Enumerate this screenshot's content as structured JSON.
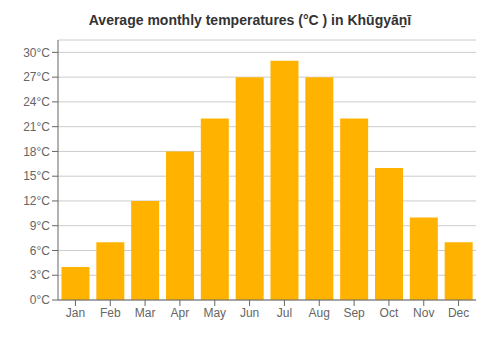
{
  "chart_data": {
    "type": "bar",
    "title": "Average monthly temperatures (°C ) in Khūgyāṉī",
    "categories": [
      "Jan",
      "Feb",
      "Mar",
      "Apr",
      "May",
      "Jun",
      "Jul",
      "Aug",
      "Sep",
      "Oct",
      "Nov",
      "Dec"
    ],
    "values": [
      4,
      7,
      12,
      18,
      22,
      27,
      29,
      27,
      22,
      16,
      10,
      7
    ],
    "color": "#FFB300",
    "ylim": [
      0,
      31.5
    ],
    "yticks": [
      {
        "value": 0,
        "label": "0°C"
      },
      {
        "value": 3,
        "label": "3°C"
      },
      {
        "value": 6,
        "label": "6°C"
      },
      {
        "value": 9,
        "label": "9°C"
      },
      {
        "value": 12,
        "label": "12°C"
      },
      {
        "value": 15,
        "label": "15°C"
      },
      {
        "value": 18,
        "label": "18°C"
      },
      {
        "value": 21,
        "label": "21°C"
      },
      {
        "value": 24,
        "label": "24°C"
      },
      {
        "value": 27,
        "label": "27°C"
      },
      {
        "value": 30,
        "label": "30°C"
      }
    ],
    "grid": true
  }
}
